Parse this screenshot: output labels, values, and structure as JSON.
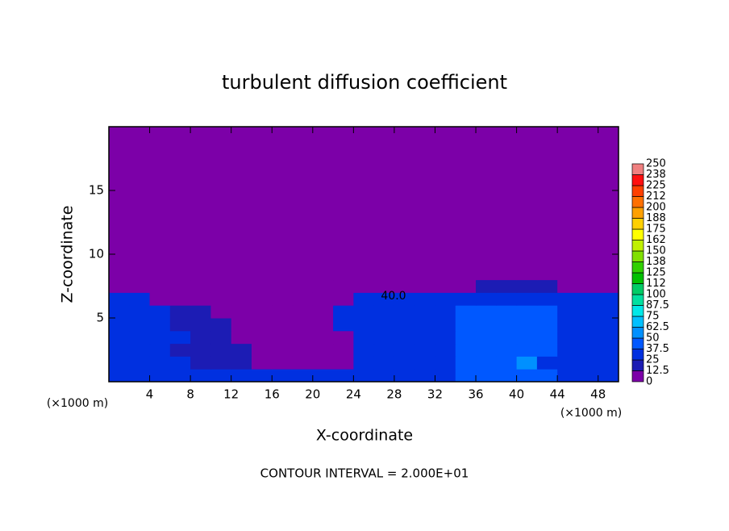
{
  "chart_data": {
    "type": "heatmap",
    "title": "turbulent diffusion coefficient",
    "xlabel": "X-coordinate",
    "ylabel": "Z-coordinate",
    "x_unit": "(×1000 m)",
    "footer": "CONTOUR INTERVAL = 2.000E+01",
    "annotations": [
      "40.0"
    ],
    "xlim": [
      0,
      50
    ],
    "ylim": [
      0,
      20
    ],
    "xticks": [
      4,
      8,
      12,
      16,
      20,
      24,
      28,
      32,
      36,
      40,
      44,
      48
    ],
    "yticks": [
      5,
      10,
      15
    ],
    "x_edges": [
      0,
      2,
      4,
      6,
      8,
      10,
      12,
      14,
      16,
      18,
      20,
      22,
      24,
      26,
      28,
      30,
      32,
      34,
      36,
      38,
      40,
      42,
      44,
      46,
      48,
      50
    ],
    "y_edges": [
      0,
      1,
      2,
      3,
      4,
      5,
      6,
      7,
      8,
      20
    ],
    "values": [
      [
        25,
        25,
        25,
        25,
        25,
        25,
        25,
        30,
        30,
        30,
        30,
        30,
        35,
        35,
        35,
        35,
        35,
        45,
        45,
        45,
        45,
        45,
        30,
        30,
        30
      ],
      [
        30,
        30,
        30,
        30,
        20,
        20,
        20,
        10,
        10,
        10,
        10,
        10,
        35,
        35,
        35,
        35,
        35,
        45,
        45,
        45,
        60,
        30,
        30,
        30,
        30
      ],
      [
        30,
        30,
        30,
        20,
        20,
        20,
        20,
        5,
        5,
        5,
        5,
        5,
        35,
        35,
        35,
        35,
        35,
        45,
        45,
        45,
        45,
        45,
        30,
        30,
        30
      ],
      [
        30,
        30,
        30,
        30,
        15,
        15,
        5,
        5,
        5,
        5,
        5,
        5,
        35,
        35,
        35,
        35,
        35,
        45,
        45,
        45,
        45,
        45,
        30,
        30,
        30
      ],
      [
        30,
        30,
        30,
        20,
        20,
        20,
        5,
        5,
        5,
        5,
        5,
        35,
        35,
        35,
        35,
        35,
        35,
        40,
        40,
        40,
        40,
        40,
        30,
        30,
        30
      ],
      [
        30,
        30,
        30,
        20,
        20,
        5,
        5,
        5,
        5,
        5,
        5,
        35,
        35,
        35,
        35,
        35,
        35,
        40,
        40,
        40,
        40,
        40,
        30,
        30,
        30
      ],
      [
        25,
        25,
        5,
        5,
        5,
        5,
        5,
        5,
        5,
        5,
        5,
        5,
        30,
        30,
        30,
        30,
        30,
        30,
        30,
        30,
        30,
        30,
        30,
        30,
        30
      ],
      [
        0,
        0,
        0,
        0,
        0,
        0,
        0,
        0,
        0,
        0,
        0,
        0,
        0,
        0,
        0,
        0,
        0,
        0,
        20,
        20,
        20,
        20,
        5,
        5,
        5
      ],
      [
        0,
        0,
        0,
        0,
        0,
        0,
        0,
        0,
        0,
        0,
        0,
        0,
        0,
        0,
        0,
        0,
        0,
        0,
        0,
        0,
        0,
        0,
        0,
        0,
        0
      ]
    ],
    "colorbar": {
      "levels": [
        0,
        12.5,
        25,
        37.5,
        50,
        62.5,
        75,
        87.5,
        100,
        {
          "value": 112.5,
          "label": "112"
        },
        125,
        {
          "value": 137.5,
          "label": "138"
        },
        150,
        {
          "value": 162.5,
          "label": "162"
        },
        175,
        {
          "value": 187.5,
          "label": "188"
        },
        200,
        {
          "value": 212.5,
          "label": "212"
        },
        225,
        {
          "value": 237.5,
          "label": "238"
        },
        250
      ],
      "colors": [
        "#7c00a8",
        "#1c1cb4",
        "#0030e0",
        "#0058ff",
        "#0090ff",
        "#00c0ff",
        "#00e8e8",
        "#00e0a0",
        "#00cc66",
        "#00c000",
        "#30d000",
        "#80e000",
        "#c0f000",
        "#ffff00",
        "#ffd000",
        "#ffa000",
        "#ff7000",
        "#ff4000",
        "#ff1010",
        "#f08080"
      ]
    }
  }
}
